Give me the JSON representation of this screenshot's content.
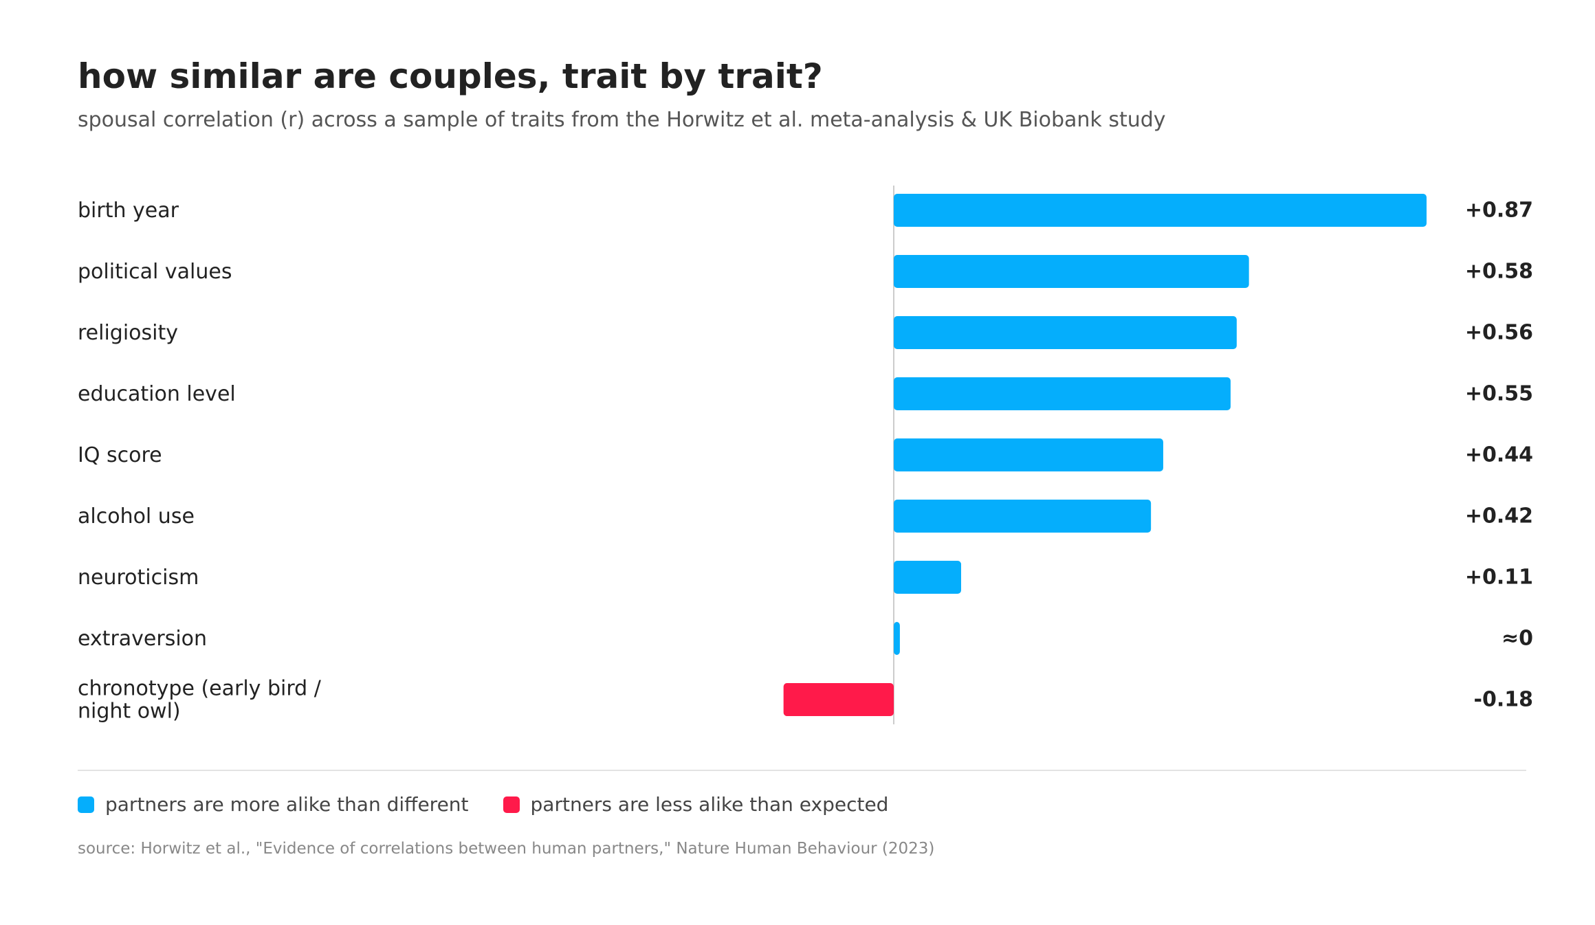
{
  "colors": {
    "positive": "#05aefc",
    "negative": "#ff1a4a",
    "axis": "#cccccc",
    "label": "#222222"
  },
  "legend": {
    "positive_label": "partners are more alike than different",
    "negative_label": "partners are less alike than expected"
  },
  "source": "source: Horwitz et al., \"Evidence of correlations between human partners,\" Nature Human Behaviour (2023)",
  "chart_data": {
    "type": "bar",
    "orientation": "horizontal",
    "title": "how similar are couples, trait by trait?",
    "subtitle": "spousal correlation (r) across a sample of traits from the Horwitz et al. meta-analysis & UK Biobank study",
    "categories": [
      "birth year",
      "political values",
      "religiosity",
      "education level",
      "IQ score",
      "alcohol use",
      "neuroticism",
      "extraversion",
      "chronotype (early bird / night owl)"
    ],
    "category_lines": [
      [
        "birth year"
      ],
      [
        "political values"
      ],
      [
        "religiosity"
      ],
      [
        "education level"
      ],
      [
        "IQ score"
      ],
      [
        "alcohol use"
      ],
      [
        "neuroticism"
      ],
      [
        "extraversion"
      ],
      [
        "chronotype (early bird /",
        "night owl)"
      ]
    ],
    "values": [
      0.87,
      0.58,
      0.56,
      0.55,
      0.44,
      0.42,
      0.11,
      0.01,
      -0.18
    ],
    "value_labels": [
      "+0.87",
      "+0.58",
      "+0.56",
      "+0.55",
      "+0.44",
      "+0.42",
      "+0.11",
      "≈0",
      "-0.18"
    ],
    "xlim": [
      -0.18,
      0.87
    ]
  }
}
